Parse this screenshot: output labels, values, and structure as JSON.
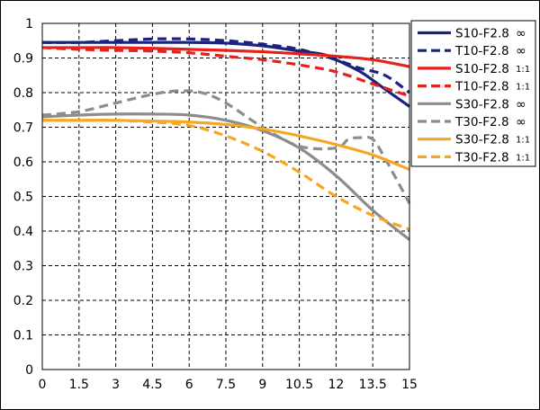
{
  "chart_data": {
    "type": "line",
    "xlabel": "",
    "ylabel": "",
    "xlim": [
      0,
      15
    ],
    "ylim": [
      0,
      1
    ],
    "x_ticks": [
      "0",
      "1.5",
      "3",
      "4.5",
      "6",
      "7.5",
      "9",
      "10.5",
      "12",
      "13.5",
      "15"
    ],
    "y_ticks": [
      "0",
      "0.1",
      "0.2",
      "0.3",
      "0.4",
      "0.5",
      "0.6",
      "0.7",
      "0.8",
      "0.9",
      "1"
    ],
    "grid": true,
    "legend_position": "top-right",
    "series": [
      {
        "name": "S10-F2.8",
        "suffix": "∞",
        "color": "#1a237e",
        "dash": "solid",
        "x": [
          0,
          1.5,
          3,
          4.5,
          6,
          7.5,
          9,
          10.5,
          11.5,
          12,
          13,
          14,
          15
        ],
        "y": [
          0.945,
          0.945,
          0.945,
          0.945,
          0.945,
          0.943,
          0.935,
          0.92,
          0.91,
          0.895,
          0.86,
          0.81,
          0.76
        ]
      },
      {
        "name": "T10-F2.8",
        "suffix": "∞",
        "color": "#1a237e",
        "dash": "dashed",
        "x": [
          0,
          1.5,
          3,
          4.5,
          6,
          7.5,
          9,
          10.5,
          12,
          13,
          14,
          15
        ],
        "y": [
          0.945,
          0.945,
          0.95,
          0.955,
          0.955,
          0.95,
          0.94,
          0.925,
          0.895,
          0.87,
          0.85,
          0.8
        ]
      },
      {
        "name": "S10-F2.8",
        "suffix": "1:1",
        "color": "#e8201c",
        "dash": "solid",
        "x": [
          0,
          1.5,
          3,
          4.5,
          6,
          7.5,
          9,
          10.5,
          12,
          13.5,
          15
        ],
        "y": [
          0.93,
          0.93,
          0.93,
          0.928,
          0.925,
          0.922,
          0.918,
          0.912,
          0.905,
          0.895,
          0.875
        ]
      },
      {
        "name": "T10-F2.8",
        "suffix": "1:1",
        "color": "#e8201c",
        "dash": "dashed",
        "x": [
          0,
          1.5,
          3,
          4.5,
          6,
          7.5,
          9,
          10.5,
          12,
          13.5,
          15
        ],
        "y": [
          0.93,
          0.925,
          0.922,
          0.92,
          0.915,
          0.905,
          0.895,
          0.88,
          0.86,
          0.825,
          0.79
        ]
      },
      {
        "name": "S30-F2.8",
        "suffix": "∞",
        "color": "#8c8c8c",
        "dash": "solid",
        "x": [
          0,
          1.5,
          3,
          4.5,
          6,
          7.5,
          9,
          10.5,
          12,
          13.5,
          15
        ],
        "y": [
          0.73,
          0.735,
          0.738,
          0.738,
          0.735,
          0.72,
          0.69,
          0.64,
          0.56,
          0.46,
          0.375
        ]
      },
      {
        "name": "T30-F2.8",
        "suffix": "∞",
        "color": "#8c8c8c",
        "dash": "dashed",
        "x": [
          0,
          1.5,
          3,
          4.5,
          5.5,
          6.5,
          7.5,
          9,
          10.5,
          12,
          12.5,
          13,
          13.5,
          14,
          15
        ],
        "y": [
          0.735,
          0.745,
          0.77,
          0.795,
          0.805,
          0.8,
          0.77,
          0.7,
          0.645,
          0.64,
          0.665,
          0.67,
          0.665,
          0.61,
          0.48
        ]
      },
      {
        "name": "S30-F2.8",
        "suffix": "1:1",
        "color": "#f5a623",
        "dash": "solid",
        "x": [
          0,
          1.5,
          3,
          4.5,
          6,
          7.5,
          9,
          10.5,
          12,
          13.5,
          15
        ],
        "y": [
          0.72,
          0.72,
          0.72,
          0.718,
          0.715,
          0.708,
          0.695,
          0.675,
          0.65,
          0.62,
          0.578
        ]
      },
      {
        "name": "T30-F2.8",
        "suffix": "1:1",
        "color": "#f5a623",
        "dash": "dashed",
        "x": [
          0,
          1.5,
          3,
          4.5,
          6,
          7.5,
          9,
          10.5,
          12,
          13.5,
          15
        ],
        "y": [
          0.72,
          0.72,
          0.72,
          0.715,
          0.705,
          0.675,
          0.63,
          0.57,
          0.5,
          0.445,
          0.405
        ]
      }
    ]
  }
}
